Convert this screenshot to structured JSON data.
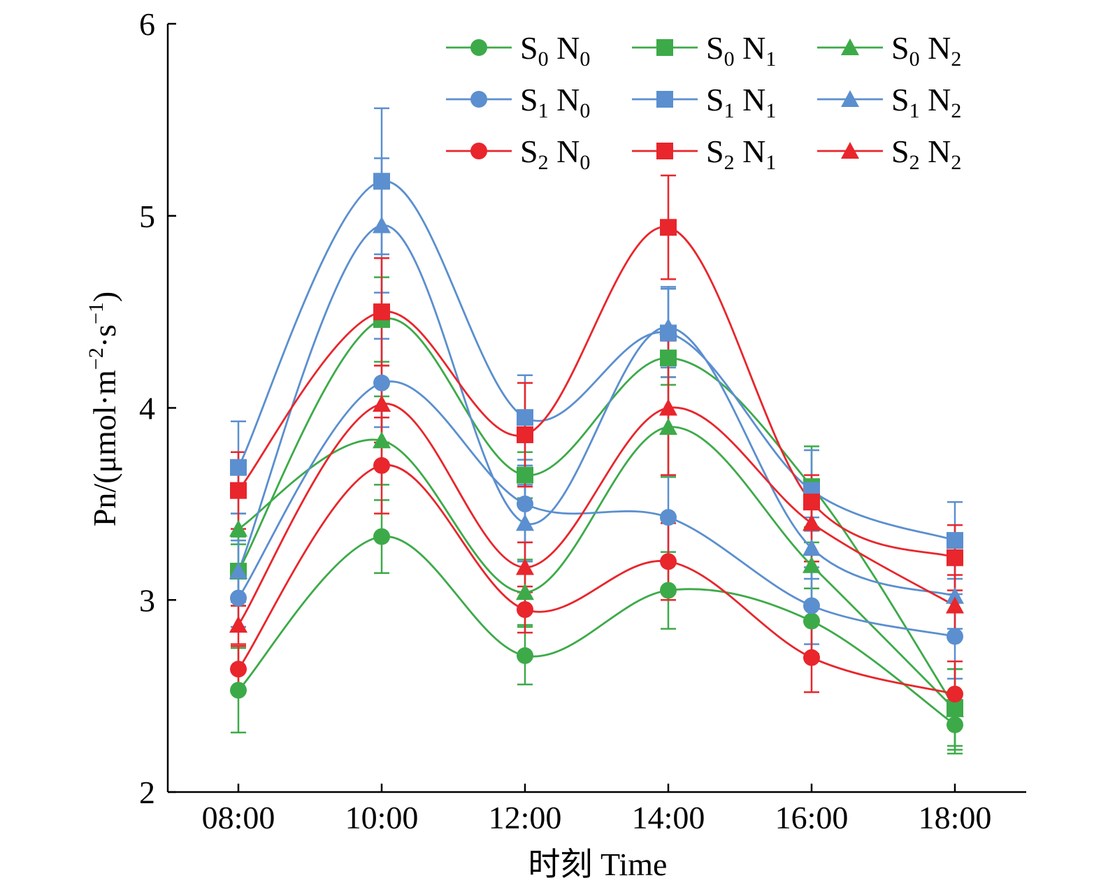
{
  "chart_data": {
    "type": "line",
    "title": "",
    "xlabel": "时刻 Time",
    "ylabel": "Pn/(μmol·m⁻²·s⁻¹)",
    "ylabel_parts": {
      "main": "Pn/(μmol·m",
      "exp1": "−2",
      "mid": "·s",
      "exp2": "−1",
      "end": ")"
    },
    "x": [
      "08:00",
      "10:00",
      "12:00",
      "14:00",
      "16:00",
      "18:00"
    ],
    "ylim": [
      2,
      6
    ],
    "yticks": [
      "2",
      "3",
      "4",
      "5",
      "6"
    ],
    "grid": false,
    "legend_position": "top-right",
    "series": [
      {
        "name": "S0 N0",
        "s": "0",
        "n": "0",
        "color": "#3daa49",
        "marker": "circle",
        "values": [
          2.53,
          3.33,
          2.71,
          3.05,
          2.89,
          2.35
        ],
        "errors": [
          0.22,
          0.19,
          0.15,
          0.2,
          0.17,
          0.15
        ]
      },
      {
        "name": "S0 N1",
        "s": "0",
        "n": "1",
        "color": "#3daa49",
        "marker": "square",
        "values": [
          3.15,
          4.46,
          3.65,
          4.26,
          3.59,
          2.44
        ],
        "errors": [
          0.18,
          0.22,
          0.12,
          0.14,
          0.21,
          0.2
        ]
      },
      {
        "name": "S0 N2",
        "s": "0",
        "n": "2",
        "color": "#3daa49",
        "marker": "triangle",
        "values": [
          3.37,
          3.83,
          3.04,
          3.9,
          3.18,
          2.43
        ],
        "errors": [
          0.08,
          0.23,
          0.17,
          0.26,
          0.12,
          0.21
        ]
      },
      {
        "name": "S1 N0",
        "s": "1",
        "n": "0",
        "color": "#5b8fcf",
        "marker": "circle",
        "values": [
          3.01,
          4.13,
          3.5,
          3.43,
          2.97,
          2.81
        ],
        "errors": [
          0.15,
          0.23,
          0.2,
          0.22,
          0.2,
          0.22
        ]
      },
      {
        "name": "S1 N1",
        "s": "1",
        "n": "1",
        "color": "#5b8fcf",
        "marker": "square",
        "values": [
          3.69,
          5.18,
          3.95,
          4.39,
          3.57,
          3.31
        ],
        "errors": [
          0.24,
          0.38,
          0.22,
          0.23,
          0.21,
          0.2
        ]
      },
      {
        "name": "S1 N2",
        "s": "1",
        "n": "2",
        "color": "#5b8fcf",
        "marker": "triangle",
        "values": [
          3.15,
          4.95,
          3.4,
          4.42,
          3.27,
          3.02
        ],
        "errors": [
          0.16,
          0.35,
          0.2,
          0.21,
          0.16,
          0.17
        ]
      },
      {
        "name": "S2 N0",
        "s": "2",
        "n": "0",
        "color": "#e8262c",
        "marker": "circle",
        "values": [
          2.64,
          3.7,
          2.95,
          3.2,
          2.7,
          2.51
        ],
        "errors": [
          0.12,
          0.25,
          0.12,
          0.2,
          0.18,
          0.17
        ]
      },
      {
        "name": "S2 N1",
        "s": "2",
        "n": "1",
        "color": "#e8262c",
        "marker": "square",
        "values": [
          3.57,
          4.5,
          3.86,
          4.94,
          3.51,
          3.22
        ],
        "errors": [
          0.2,
          0.28,
          0.27,
          0.27,
          0.14,
          0.17
        ]
      },
      {
        "name": "S2 N2",
        "s": "2",
        "n": "2",
        "color": "#e8262c",
        "marker": "triangle",
        "values": [
          2.87,
          4.02,
          3.17,
          4.0,
          3.4,
          2.97
        ],
        "errors": [
          0.1,
          0.2,
          0.13,
          0.35,
          0.2,
          0.16
        ]
      }
    ]
  }
}
